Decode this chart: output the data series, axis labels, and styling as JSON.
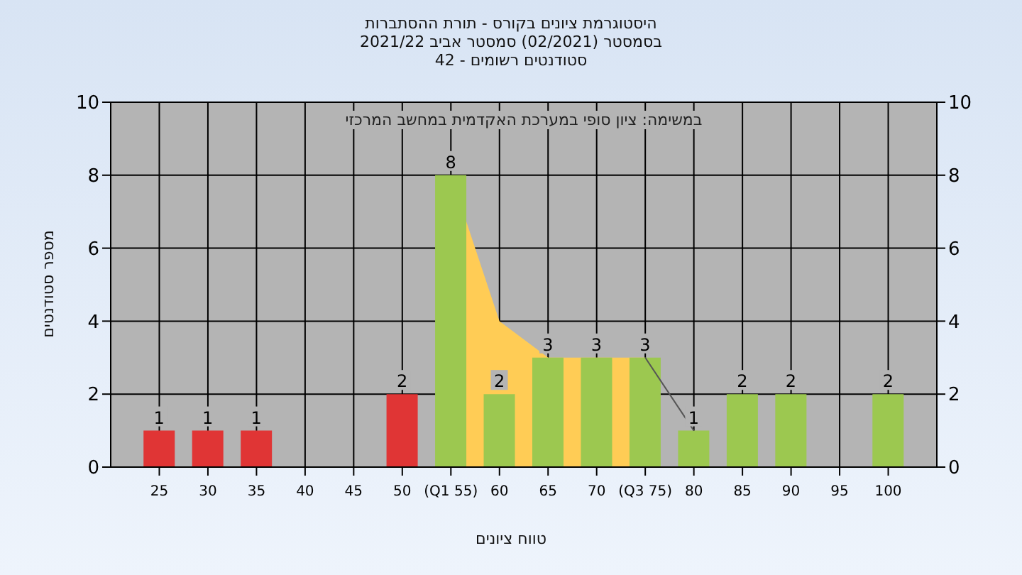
{
  "chart_data": {
    "type": "bar",
    "title": "היסטוגרמת ציונים בקורס - תורת ההסתברות",
    "subtitle": "בסמסטר  (02/2021)  סמסטר אביב 2021/22\nסטודנטים רשומים - 42",
    "xlabel": "טווח ציונים",
    "ylabel": "מספר סטודנטים",
    "annotations": [
      "במשימה: ציון סופי במערכת האקדמית במחשב המרכזי"
    ],
    "x": [
      25,
      30,
      35,
      50,
      55,
      60,
      65,
      70,
      75,
      80,
      85,
      90,
      100
    ],
    "values": [
      1,
      1,
      1,
      2,
      8,
      2,
      3,
      3,
      3,
      1,
      2,
      2,
      2
    ],
    "colors": [
      "#e03535",
      "#e03535",
      "#e03535",
      "#e03535",
      "#9cc850",
      "#9cc850",
      "#9cc850",
      "#9cc850",
      "#9cc850",
      "#9cc850",
      "#9cc850",
      "#9cc850",
      "#9cc850"
    ],
    "series": [
      {
        "type": "area",
        "color": "#ffcc55",
        "x": [
          55,
          60,
          65,
          70,
          75
        ],
        "values": [
          8,
          4,
          3,
          3,
          3
        ]
      },
      {
        "type": "line",
        "color": "#555555",
        "x": [
          75,
          80
        ],
        "values": [
          3,
          1
        ]
      }
    ],
    "value_labels": [
      "1",
      "1",
      "1",
      "2",
      "8",
      "2",
      "3",
      "3",
      "3",
      "1",
      "2",
      "2",
      "2"
    ],
    "xlim": [
      20,
      105
    ],
    "xticks": [
      25,
      30,
      35,
      40,
      45,
      50,
      {
        "value": 55,
        "label": "(Q1 55)"
      },
      60,
      65,
      70,
      {
        "value": 75,
        "label": "(Q3 75)"
      },
      80,
      85,
      90,
      95,
      100
    ],
    "ylim": [
      0,
      10
    ],
    "yticks": [
      0,
      2,
      4,
      6,
      8,
      10
    ],
    "y2lim": [
      0,
      10
    ],
    "y2ticks": [
      0,
      2,
      4,
      6,
      8,
      10
    ],
    "grid": true
  }
}
